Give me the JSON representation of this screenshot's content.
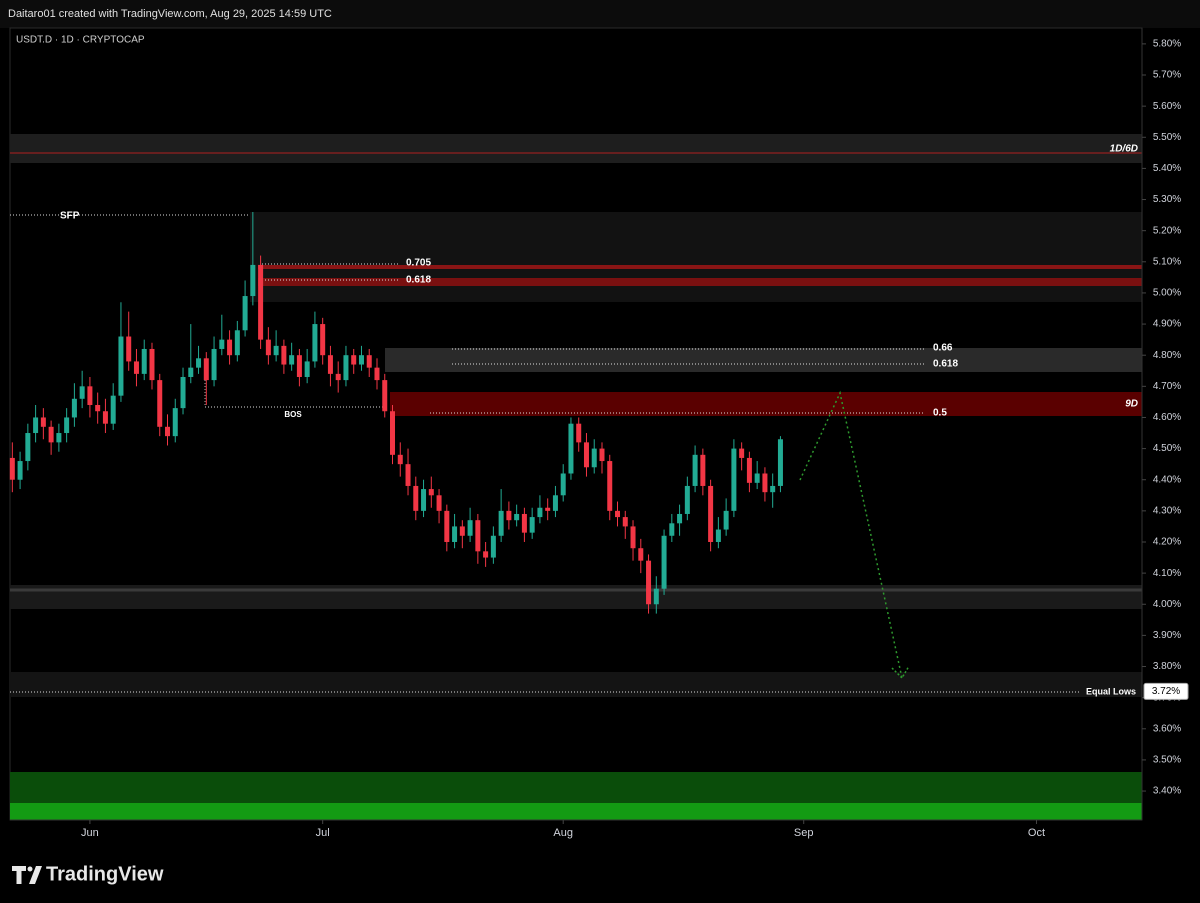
{
  "header": "Daitaro01 created with TradingView.com, Aug 29, 2025 14:59 UTC",
  "brand": "TradingView",
  "chart_data": {
    "type": "candlestick",
    "symbol": "USDT.D · 1D · CRYPTOCAP",
    "up_color": "#22ab94",
    "down_color": "#f23645",
    "open": [
      4.47,
      4.4,
      4.46,
      4.55,
      4.6,
      4.57,
      4.52,
      4.55,
      4.6,
      4.66,
      4.7,
      4.64,
      4.62,
      4.58,
      4.67,
      4.86,
      4.78,
      4.74,
      4.82,
      4.72,
      4.57,
      4.54,
      4.63,
      4.73,
      4.76,
      4.79,
      4.72,
      4.82,
      4.85,
      4.8,
      4.88,
      4.99,
      5.09,
      4.85,
      4.8,
      4.83,
      4.77,
      4.8,
      4.73,
      4.78,
      4.9,
      4.8,
      4.74,
      4.72,
      4.8,
      4.77,
      4.8,
      4.76,
      4.72,
      4.62,
      4.48,
      4.45,
      4.38,
      4.3,
      4.37,
      4.35,
      4.3,
      4.2,
      4.25,
      4.22,
      4.27,
      4.17,
      4.15,
      4.22,
      4.3,
      4.27,
      4.29,
      4.23,
      4.28,
      4.31,
      4.3,
      4.35,
      4.42,
      4.58,
      4.52,
      4.44,
      4.5,
      4.46,
      4.3,
      4.28,
      4.25,
      4.18,
      4.14,
      4.0,
      4.05,
      4.22,
      4.26,
      4.29,
      4.38,
      4.48,
      4.38,
      4.2,
      4.24,
      4.3,
      4.5,
      4.47,
      4.39,
      4.42,
      4.36,
      4.38
    ],
    "high": [
      4.52,
      4.49,
      4.58,
      4.64,
      4.63,
      4.59,
      4.58,
      4.63,
      4.71,
      4.75,
      4.73,
      4.68,
      4.66,
      4.71,
      4.97,
      4.94,
      4.82,
      4.85,
      4.84,
      4.74,
      4.61,
      4.66,
      4.76,
      4.9,
      4.83,
      4.81,
      4.86,
      4.93,
      4.88,
      4.91,
      5.04,
      5.26,
      5.12,
      4.89,
      4.88,
      4.85,
      4.84,
      4.82,
      4.82,
      4.94,
      4.92,
      4.83,
      4.78,
      4.83,
      4.82,
      4.83,
      4.82,
      4.79,
      4.74,
      4.64,
      4.52,
      4.5,
      4.41,
      4.4,
      4.41,
      4.37,
      4.32,
      4.29,
      4.27,
      4.31,
      4.29,
      4.2,
      4.25,
      4.37,
      4.33,
      4.32,
      4.31,
      4.31,
      4.35,
      4.34,
      4.38,
      4.45,
      4.6,
      4.6,
      4.55,
      4.53,
      4.52,
      4.48,
      4.33,
      4.3,
      4.27,
      4.21,
      4.16,
      4.09,
      4.24,
      4.29,
      4.32,
      4.41,
      4.51,
      4.5,
      4.4,
      4.28,
      4.34,
      4.53,
      4.52,
      4.49,
      4.46,
      4.44,
      4.42,
      4.54
    ],
    "low": [
      4.36,
      4.37,
      4.43,
      4.52,
      4.53,
      4.48,
      4.49,
      4.52,
      4.57,
      4.63,
      4.6,
      4.58,
      4.55,
      4.56,
      4.65,
      4.75,
      4.7,
      4.72,
      4.69,
      4.54,
      4.51,
      4.52,
      4.61,
      4.71,
      4.74,
      4.64,
      4.7,
      4.8,
      4.77,
      4.78,
      4.86,
      4.96,
      4.82,
      4.77,
      4.78,
      4.74,
      4.75,
      4.7,
      4.71,
      4.76,
      4.77,
      4.7,
      4.68,
      4.7,
      4.74,
      4.75,
      4.73,
      4.69,
      4.6,
      4.45,
      4.41,
      4.35,
      4.27,
      4.28,
      4.31,
      4.26,
      4.17,
      4.18,
      4.18,
      4.2,
      4.13,
      4.12,
      4.13,
      4.2,
      4.24,
      4.25,
      4.2,
      4.21,
      4.26,
      4.27,
      4.28,
      4.33,
      4.4,
      4.49,
      4.41,
      4.42,
      4.42,
      4.27,
      4.25,
      4.21,
      4.14,
      4.1,
      3.97,
      3.97,
      4.03,
      4.2,
      4.22,
      4.27,
      4.36,
      4.35,
      4.17,
      4.18,
      4.22,
      4.28,
      4.43,
      4.36,
      4.37,
      4.33,
      4.31,
      4.36
    ],
    "close": [
      4.4,
      4.46,
      4.55,
      4.6,
      4.57,
      4.52,
      4.55,
      4.6,
      4.66,
      4.7,
      4.64,
      4.62,
      4.58,
      4.67,
      4.86,
      4.78,
      4.74,
      4.82,
      4.72,
      4.57,
      4.54,
      4.63,
      4.73,
      4.76,
      4.79,
      4.72,
      4.82,
      4.85,
      4.8,
      4.88,
      4.99,
      5.09,
      4.85,
      4.8,
      4.83,
      4.77,
      4.8,
      4.73,
      4.78,
      4.9,
      4.8,
      4.74,
      4.72,
      4.8,
      4.77,
      4.8,
      4.76,
      4.72,
      4.62,
      4.48,
      4.45,
      4.38,
      4.3,
      4.37,
      4.35,
      4.3,
      4.2,
      4.25,
      4.22,
      4.27,
      4.17,
      4.15,
      4.22,
      4.3,
      4.27,
      4.29,
      4.23,
      4.28,
      4.31,
      4.3,
      4.35,
      4.42,
      4.58,
      4.52,
      4.44,
      4.5,
      4.46,
      4.3,
      4.28,
      4.25,
      4.18,
      4.14,
      4.0,
      4.05,
      4.22,
      4.26,
      4.29,
      4.38,
      4.48,
      4.38,
      4.2,
      4.24,
      4.3,
      4.5,
      4.47,
      4.39,
      4.42,
      4.36,
      4.38,
      4.53
    ],
    "xlim": [
      -0.3,
      145.6
    ],
    "xticks": [
      {
        "value": 10,
        "label": "Jun"
      },
      {
        "value": 40,
        "label": "Jul"
      },
      {
        "value": 71,
        "label": "Aug"
      },
      {
        "value": 102,
        "label": "Sep"
      },
      {
        "value": 132,
        "label": "Oct"
      }
    ],
    "ylim": [
      3.307,
      5.851
    ],
    "yticks": [
      {
        "value": 5.8,
        "label": "5.80%"
      },
      {
        "value": 5.7,
        "label": "5.70%"
      },
      {
        "value": 5.6,
        "label": "5.60%"
      },
      {
        "value": 5.5,
        "label": "5.50%"
      },
      {
        "value": 5.4,
        "label": "5.40%"
      },
      {
        "value": 5.3,
        "label": "5.30%"
      },
      {
        "value": 5.2,
        "label": "5.20%"
      },
      {
        "value": 5.1,
        "label": "5.10%"
      },
      {
        "value": 5.0,
        "label": "5.00%"
      },
      {
        "value": 4.9,
        "label": "4.90%"
      },
      {
        "value": 4.8,
        "label": "4.80%"
      },
      {
        "value": 4.7,
        "label": "4.70%"
      },
      {
        "value": 4.6,
        "label": "4.60%"
      },
      {
        "value": 4.5,
        "label": "4.50%"
      },
      {
        "value": 4.4,
        "label": "4.40%"
      },
      {
        "value": 4.3,
        "label": "4.30%"
      },
      {
        "value": 4.2,
        "label": "4.20%"
      },
      {
        "value": 4.1,
        "label": "4.10%"
      },
      {
        "value": 4.0,
        "label": "4.00%"
      },
      {
        "value": 3.9,
        "label": "3.90%"
      },
      {
        "value": 3.8,
        "label": "3.80%"
      },
      {
        "value": 3.7,
        "label": "3.70%"
      },
      {
        "value": 3.6,
        "label": "3.60%"
      },
      {
        "value": 3.5,
        "label": "3.50%"
      },
      {
        "value": 3.4,
        "label": "3.40%"
      }
    ],
    "price_label": {
      "value": 3.72,
      "label": "3.72%"
    },
    "annotations": [
      "1D/6D",
      "SFP",
      "0.705",
      "0.618",
      "BOS",
      "0.66",
      "0.618",
      "0.5",
      "9D",
      "Equal Lows"
    ]
  }
}
